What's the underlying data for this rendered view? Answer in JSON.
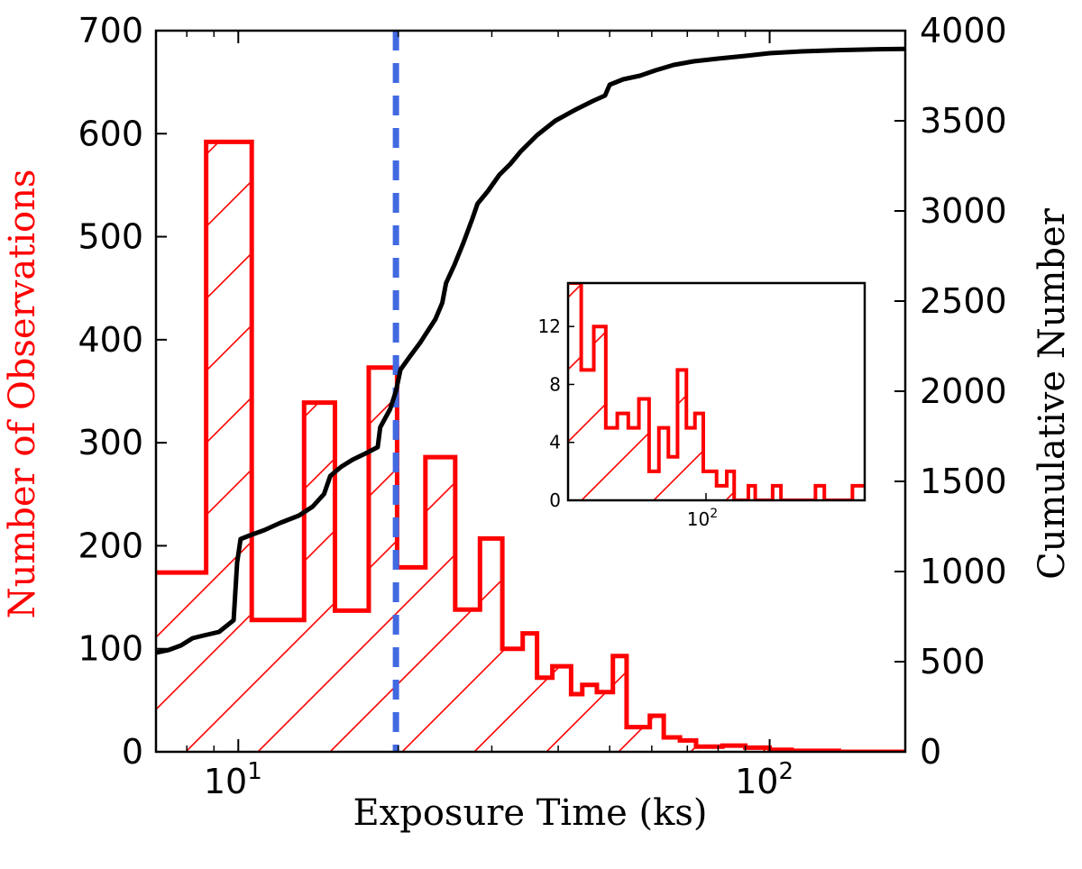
{
  "chart_data": {
    "type": "bar",
    "xlabel": "Exposure Time (ks)",
    "ylabel_left": "Number of Observations",
    "ylabel_right": "Cumulative Number",
    "x_scale": "log",
    "xlim": [
      7.0,
      180.0
    ],
    "ylim_left": [
      0,
      700
    ],
    "ylim_right": [
      0,
      4000
    ],
    "x_ticks": [
      {
        "value": 10,
        "base": "10",
        "exp": "1"
      },
      {
        "value": 100,
        "base": "10",
        "exp": "2"
      }
    ],
    "y_ticks_left": [
      0,
      100,
      200,
      300,
      400,
      500,
      600,
      700
    ],
    "y_ticks_right": [
      0,
      500,
      1000,
      1500,
      2000,
      2500,
      3000,
      3500,
      4000
    ],
    "colors": {
      "histogram": "#ff0000",
      "cumulative": "#000000",
      "threshold": "#4169e1",
      "left_label": "#ff0000"
    },
    "threshold_ks": 19.8,
    "histogram": {
      "hatched": true,
      "bins": [
        {
          "x0": 7.0,
          "x1": 8.7,
          "count": 174
        },
        {
          "x0": 8.7,
          "x1": 10.6,
          "count": 592
        },
        {
          "x0": 10.6,
          "x1": 13.3,
          "count": 128
        },
        {
          "x0": 13.3,
          "x1": 15.2,
          "count": 339
        },
        {
          "x0": 15.2,
          "x1": 17.6,
          "count": 137
        },
        {
          "x0": 17.6,
          "x1": 19.9,
          "count": 373
        },
        {
          "x0": 19.9,
          "x1": 22.5,
          "count": 179
        },
        {
          "x0": 22.5,
          "x1": 25.6,
          "count": 286
        },
        {
          "x0": 25.6,
          "x1": 28.5,
          "count": 138
        },
        {
          "x0": 28.5,
          "x1": 31.4,
          "count": 207
        },
        {
          "x0": 31.4,
          "x1": 34.3,
          "count": 100
        },
        {
          "x0": 34.3,
          "x1": 36.5,
          "count": 115
        },
        {
          "x0": 36.5,
          "x1": 39.0,
          "count": 72
        },
        {
          "x0": 39.0,
          "x1": 42.3,
          "count": 83
        },
        {
          "x0": 42.3,
          "x1": 44.4,
          "count": 56
        },
        {
          "x0": 44.4,
          "x1": 47.3,
          "count": 65
        },
        {
          "x0": 47.3,
          "x1": 50.7,
          "count": 58
        },
        {
          "x0": 50.7,
          "x1": 53.8,
          "count": 93
        },
        {
          "x0": 53.8,
          "x1": 59.5,
          "count": 24
        },
        {
          "x0": 59.5,
          "x1": 63.2,
          "count": 35
        },
        {
          "x0": 63.2,
          "x1": 67.8,
          "count": 14
        },
        {
          "x0": 67.8,
          "x1": 72.7,
          "count": 11
        },
        {
          "x0": 72.7,
          "x1": 81.5,
          "count": 5
        },
        {
          "x0": 81.5,
          "x1": 90.0,
          "count": 6
        },
        {
          "x0": 90.0,
          "x1": 100.0,
          "count": 4
        },
        {
          "x0": 100.0,
          "x1": 110.0,
          "count": 2
        },
        {
          "x0": 110.0,
          "x1": 135.0,
          "count": 1
        },
        {
          "x0": 135.0,
          "x1": 180.0,
          "count": 0
        }
      ]
    },
    "cumulative": [
      [
        7.0,
        550
      ],
      [
        7.4,
        565
      ],
      [
        7.8,
        590
      ],
      [
        8.2,
        630
      ],
      [
        8.6,
        645
      ],
      [
        9.2,
        665
      ],
      [
        9.8,
        730
      ],
      [
        9.95,
        1050
      ],
      [
        10.1,
        1180
      ],
      [
        10.5,
        1200
      ],
      [
        11.2,
        1230
      ],
      [
        12.0,
        1270
      ],
      [
        13.0,
        1310
      ],
      [
        13.8,
        1360
      ],
      [
        14.5,
        1430
      ],
      [
        14.9,
        1530
      ],
      [
        15.6,
        1580
      ],
      [
        16.4,
        1620
      ],
      [
        17.5,
        1660
      ],
      [
        18.3,
        1690
      ],
      [
        18.5,
        1800
      ],
      [
        19.3,
        1900
      ],
      [
        19.8,
        2000
      ],
      [
        20.2,
        2120
      ],
      [
        21.0,
        2190
      ],
      [
        22.0,
        2270
      ],
      [
        23.5,
        2400
      ],
      [
        24.2,
        2490
      ],
      [
        24.6,
        2600
      ],
      [
        25.5,
        2700
      ],
      [
        26.5,
        2820
      ],
      [
        27.6,
        2960
      ],
      [
        28.2,
        3040
      ],
      [
        29.5,
        3110
      ],
      [
        31.0,
        3200
      ],
      [
        32.5,
        3260
      ],
      [
        34.0,
        3330
      ],
      [
        36.5,
        3420
      ],
      [
        39.5,
        3500
      ],
      [
        43.0,
        3560
      ],
      [
        46.5,
        3610
      ],
      [
        49.0,
        3640
      ],
      [
        50.0,
        3700
      ],
      [
        53.0,
        3730
      ],
      [
        57.0,
        3750
      ],
      [
        61.0,
        3780
      ],
      [
        66.0,
        3810
      ],
      [
        72.0,
        3830
      ],
      [
        80.0,
        3845
      ],
      [
        90.0,
        3860
      ],
      [
        100.0,
        3875
      ],
      [
        115.0,
        3885
      ],
      [
        135.0,
        3892
      ],
      [
        160.0,
        3897
      ],
      [
        180.0,
        3899
      ]
    ],
    "inset": {
      "xlim": [
        60.0,
        180.0
      ],
      "ylim": [
        0,
        15
      ],
      "y_ticks": [
        0,
        4,
        8,
        12
      ],
      "x_ticks": [
        {
          "value": 100,
          "base": "10",
          "exp": "2"
        }
      ],
      "bins": [
        {
          "x0": 60,
          "x1": 63,
          "count": 15
        },
        {
          "x0": 63,
          "x1": 66,
          "count": 9
        },
        {
          "x0": 66,
          "x1": 69,
          "count": 12
        },
        {
          "x0": 69,
          "x1": 72,
          "count": 5
        },
        {
          "x0": 72,
          "x1": 75,
          "count": 6
        },
        {
          "x0": 75,
          "x1": 78,
          "count": 5
        },
        {
          "x0": 78,
          "x1": 81,
          "count": 7
        },
        {
          "x0": 81,
          "x1": 84,
          "count": 2
        },
        {
          "x0": 84,
          "x1": 87,
          "count": 5
        },
        {
          "x0": 87,
          "x1": 90,
          "count": 3
        },
        {
          "x0": 90,
          "x1": 93,
          "count": 9
        },
        {
          "x0": 93,
          "x1": 96,
          "count": 5
        },
        {
          "x0": 96,
          "x1": 99,
          "count": 6
        },
        {
          "x0": 99,
          "x1": 104,
          "count": 2
        },
        {
          "x0": 104,
          "x1": 108,
          "count": 1
        },
        {
          "x0": 108,
          "x1": 111,
          "count": 2
        },
        {
          "x0": 111,
          "x1": 117,
          "count": 0
        },
        {
          "x0": 117,
          "x1": 120,
          "count": 1
        },
        {
          "x0": 120,
          "x1": 128,
          "count": 0
        },
        {
          "x0": 128,
          "x1": 132,
          "count": 1
        },
        {
          "x0": 132,
          "x1": 150,
          "count": 0
        },
        {
          "x0": 150,
          "x1": 155,
          "count": 1
        },
        {
          "x0": 155,
          "x1": 172,
          "count": 0
        },
        {
          "x0": 172,
          "x1": 180,
          "count": 1
        }
      ]
    }
  }
}
